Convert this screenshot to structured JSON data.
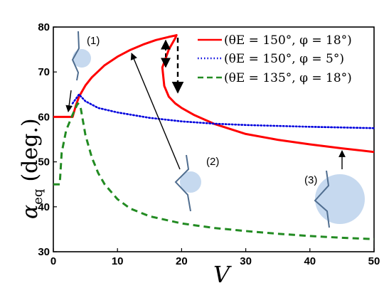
{
  "chart_data": {
    "type": "line",
    "xlabel": "V",
    "ylabel_symbol": "α",
    "ylabel_sub": "eq",
    "ylabel_unit": "(deg.)",
    "xlim": [
      0,
      50
    ],
    "ylim": [
      30,
      80
    ],
    "xticks": [
      0,
      10,
      20,
      30,
      40,
      50
    ],
    "yticks": [
      30,
      40,
      50,
      60,
      70,
      80
    ],
    "grid": false,
    "legend_position": "top-right",
    "series": [
      {
        "name": "(θE = 150°, φ = 18°)",
        "color": "#ff0000",
        "style": "solid",
        "x": [
          0,
          3,
          3.5,
          4,
          5,
          6,
          8,
          10,
          12,
          14,
          16,
          18,
          19,
          19.2,
          19,
          18,
          17,
          17.3,
          18,
          19,
          20,
          22,
          25,
          30,
          35,
          40,
          45,
          50
        ],
        "y": [
          60,
          60,
          62.5,
          64.5,
          67,
          68.8,
          71.5,
          73.4,
          74.9,
          76.1,
          77.1,
          77.8,
          78.1,
          78.2,
          77.5,
          75,
          71,
          66.9,
          64.5,
          63,
          62,
          60.4,
          58.5,
          56.2,
          54.9,
          53.9,
          53,
          52.2
        ]
      },
      {
        "name": "(θE = 150°, φ = 5°)",
        "color": "#0000dd",
        "style": "dotted",
        "x": [
          3,
          4,
          5,
          7,
          10,
          15,
          20,
          25,
          30,
          40,
          50
        ],
        "y": [
          63,
          65,
          63.5,
          62,
          61,
          59.8,
          59,
          58.5,
          58.2,
          57.8,
          57.5
        ]
      },
      {
        "name": "(θE = 135°, φ = 18°)",
        "color": "#228b22",
        "style": "dashed",
        "x": [
          0,
          1,
          1.3,
          2,
          3,
          3.8,
          4.2,
          5,
          6,
          7,
          8,
          10,
          12,
          15,
          20,
          25,
          30,
          35,
          40,
          45,
          50
        ],
        "y": [
          45,
          45,
          52,
          57,
          60.5,
          63,
          62.5,
          56,
          51,
          47.5,
          45,
          41.7,
          39.6,
          37.9,
          36.3,
          35.3,
          34.6,
          34,
          33.5,
          33.1,
          32.8
        ]
      }
    ],
    "annotations": [
      {
        "label": "(1)"
      },
      {
        "label": "(2)"
      },
      {
        "label": "(3)"
      }
    ]
  },
  "colors": {
    "axis": "#000000",
    "drop_fill": "#c6d9ef",
    "surface_stroke": "#4f6d8f"
  }
}
